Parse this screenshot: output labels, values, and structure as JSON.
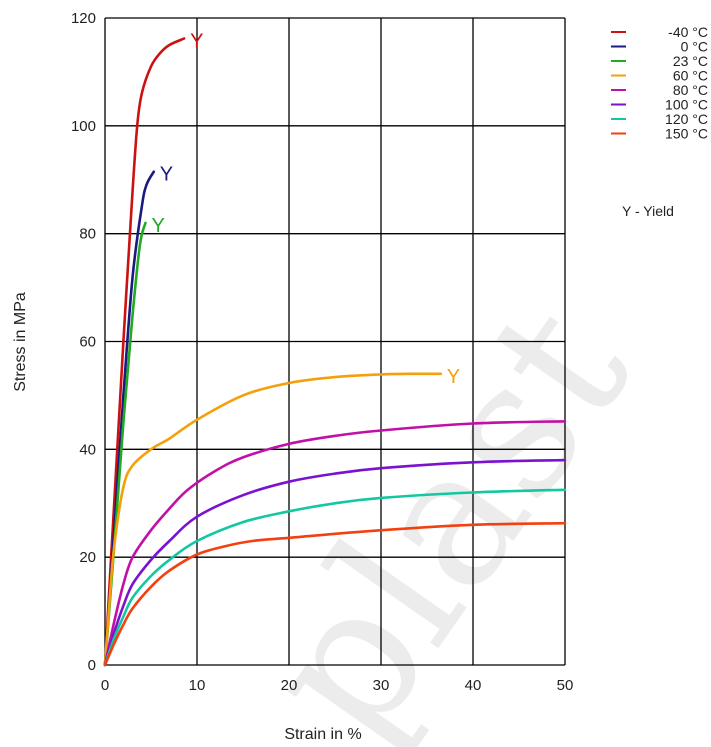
{
  "chart_data": {
    "type": "line",
    "xlabel": "Strain in %",
    "ylabel": "Stress in MPa",
    "xlim": [
      0,
      50
    ],
    "ylim": [
      0,
      120
    ],
    "xticks": [
      0,
      10,
      20,
      30,
      40,
      50
    ],
    "yticks": [
      0,
      20,
      40,
      60,
      80,
      100,
      120
    ],
    "grid": true,
    "legend_position": "right",
    "yield_symbol": "Y",
    "yield_note": "Y - Yield",
    "watermark": "plast",
    "series": [
      {
        "name": "-40 °C",
        "color": "#cc1111",
        "points": [
          [
            0,
            0
          ],
          [
            1,
            30
          ],
          [
            2,
            60
          ],
          [
            3,
            88
          ],
          [
            3.5,
            100
          ],
          [
            4,
            106
          ],
          [
            5,
            111
          ],
          [
            6,
            113.5
          ],
          [
            7,
            115
          ],
          [
            8.6,
            116.2
          ]
        ],
        "yield": [
          8.6,
          116.2
        ]
      },
      {
        "name": "0 °C",
        "color": "#1a1a80",
        "points": [
          [
            0,
            0
          ],
          [
            1,
            25
          ],
          [
            2,
            50
          ],
          [
            3,
            72
          ],
          [
            4,
            85
          ],
          [
            4.5,
            89
          ],
          [
            5.3,
            91.5
          ]
        ],
        "yield": [
          5.3,
          91.5
        ]
      },
      {
        "name": "23 °C",
        "color": "#22aa22",
        "points": [
          [
            0,
            0
          ],
          [
            1,
            22
          ],
          [
            2,
            45
          ],
          [
            3,
            65
          ],
          [
            3.8,
            78
          ],
          [
            4.4,
            82
          ]
        ],
        "yield": [
          4.4,
          82
        ]
      },
      {
        "name": "60 °C",
        "color": "#f5a00a",
        "points": [
          [
            0,
            0
          ],
          [
            0.5,
            12
          ],
          [
            1,
            22
          ],
          [
            2,
            33
          ],
          [
            3,
            37
          ],
          [
            5,
            40
          ],
          [
            7,
            42
          ],
          [
            10,
            45.5
          ],
          [
            15,
            50
          ],
          [
            20,
            52.3
          ],
          [
            25,
            53.4
          ],
          [
            30,
            53.9
          ],
          [
            34,
            54
          ],
          [
            36.5,
            54
          ]
        ],
        "yield": [
          36.5,
          54
        ]
      },
      {
        "name": "80 °C",
        "color": "#c010a8",
        "points": [
          [
            0,
            0
          ],
          [
            1,
            8
          ],
          [
            2,
            15
          ],
          [
            3,
            20
          ],
          [
            5,
            25
          ],
          [
            7,
            29
          ],
          [
            9,
            32.5
          ],
          [
            12,
            36
          ],
          [
            15,
            38.5
          ],
          [
            20,
            41
          ],
          [
            25,
            42.5
          ],
          [
            30,
            43.5
          ],
          [
            40,
            44.8
          ],
          [
            50,
            45.2
          ]
        ]
      },
      {
        "name": "100 °C",
        "color": "#7a12d0",
        "points": [
          [
            0,
            0
          ],
          [
            1,
            6
          ],
          [
            2,
            11
          ],
          [
            3,
            15
          ],
          [
            5,
            19.5
          ],
          [
            7,
            23
          ],
          [
            10,
            27.5
          ],
          [
            15,
            31.5
          ],
          [
            20,
            34
          ],
          [
            25,
            35.5
          ],
          [
            30,
            36.5
          ],
          [
            40,
            37.6
          ],
          [
            50,
            38
          ]
        ]
      },
      {
        "name": "120 °C",
        "color": "#12c8a0",
        "points": [
          [
            0,
            0
          ],
          [
            1,
            5
          ],
          [
            2,
            9
          ],
          [
            3,
            12.5
          ],
          [
            5,
            16.5
          ],
          [
            7,
            19.5
          ],
          [
            10,
            23
          ],
          [
            15,
            26.5
          ],
          [
            20,
            28.5
          ],
          [
            25,
            30
          ],
          [
            30,
            31
          ],
          [
            40,
            32
          ],
          [
            50,
            32.5
          ]
        ]
      },
      {
        "name": "150 °C",
        "color": "#f24010",
        "points": [
          [
            0,
            0
          ],
          [
            1,
            4
          ],
          [
            2,
            7.5
          ],
          [
            3,
            10.5
          ],
          [
            5,
            14.5
          ],
          [
            7,
            17.5
          ],
          [
            10,
            20.5
          ],
          [
            13,
            22
          ],
          [
            16,
            23
          ],
          [
            20,
            23.6
          ],
          [
            30,
            25
          ],
          [
            40,
            26
          ],
          [
            50,
            26.3
          ]
        ]
      }
    ]
  }
}
